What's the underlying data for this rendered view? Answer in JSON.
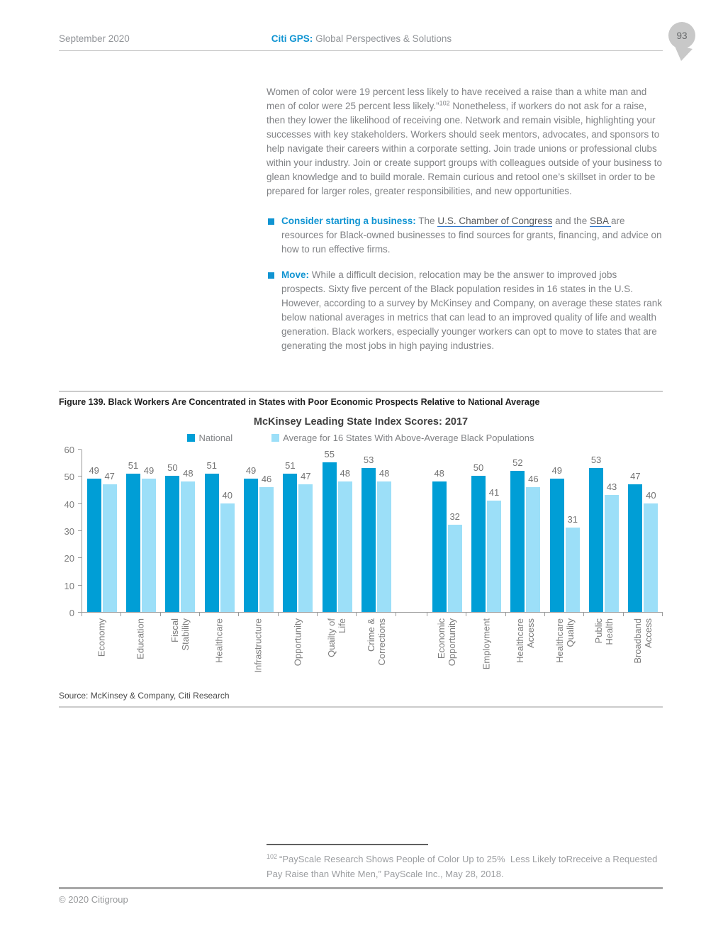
{
  "header": {
    "date": "September 2020",
    "brand": "Citi GPS:",
    "tagline": "Global Perspectives & Solutions",
    "page_number": "93"
  },
  "body": {
    "para_a": "Women of color were 19 percent less likely to have received a raise than a white man and men of color were 25 percent less likely.”",
    "para_sup": "102",
    "para_b": " Nonetheless, if workers do not ask for a raise, then they lower the likelihood of receiving one. Network and remain visible, highlighting your successes with key stakeholders. Workers should seek mentors, advocates, and sponsors to help navigate their careers within a corporate setting. Join trade unions or professional clubs within your industry. Join or create support groups with colleagues outside of your business to glean knowledge and to build morale. Remain curious and retool one’s skillset in order to be prepared for larger roles, greater responsibilities, and new opportunities.",
    "bullets": [
      {
        "lead": "Consider starting a business:",
        "t1": " The ",
        "link1": "U.S. Chamber of Congress",
        "t2": " and the ",
        "link2": "SBA ",
        "t3": "are resources for Black-owned businesses to find sources for grants, financing, and advice on how to run effective firms."
      },
      {
        "lead": "Move:",
        "t1": " While a difficult decision, relocation may be the answer to improved jobs prospects. Sixty five percent of the Black population resides in 16 states in the U.S. However, according to a survey by McKinsey and Company, on average these states rank below national averages in metrics that can lead to an improved quality of life and wealth generation. Black workers, especially younger workers can opt to move to states that are generating the most jobs in high paying industries."
      }
    ]
  },
  "figure": {
    "caption": "Figure 139. Black Workers Are Concentrated in States with Poor Economic Prospects Relative to National Average",
    "source": "Source: McKinsey & Company, Citi Research"
  },
  "chart_data": {
    "type": "bar",
    "title": "McKinsey Leading State Index Scores: 2017",
    "legend_position": "top",
    "grid": false,
    "ylim": [
      0,
      60
    ],
    "yticks": [
      0,
      10,
      20,
      30,
      40,
      50,
      60
    ],
    "series_names": [
      "National",
      "Average for 16 States With Above-Average Black Populations"
    ],
    "clusters": [
      {
        "categories": [
          "Economy",
          "Education",
          "Fiscal\nStability",
          "Healthcare",
          "Infrastructure",
          "Opportunity",
          "Quailty of\nLife",
          "Crime &\nCorrections"
        ],
        "series": [
          {
            "name": "National",
            "values": [
              49,
              51,
              50,
              51,
              49,
              51,
              55,
              53
            ]
          },
          {
            "name": "Average for 16 States With Above-Average Black Populations",
            "values": [
              47,
              49,
              48,
              40,
              46,
              47,
              48,
              48
            ]
          }
        ]
      },
      {
        "categories": [
          "Economic\nOpportunity",
          "Employment",
          "Healthcare\nAccess",
          "Healthcare\nQuality",
          "Public\nHealth",
          "Broadband\nAccess"
        ],
        "series": [
          {
            "name": "National",
            "values": [
              48,
              50,
              52,
              49,
              53,
              47
            ]
          },
          {
            "name": "Average for 16 States With Above-Average Black Populations",
            "values": [
              32,
              41,
              46,
              31,
              43,
              40
            ]
          }
        ]
      }
    ]
  },
  "footnote": {
    "marker": "102",
    "text": "“PayScale Research Shows People of Color Up to 25%  Less Likely toRreceive a Requested Pay Raise than White Men,” PayScale Inc., May 28, 2018."
  },
  "footer": {
    "copyright": "© 2020 Citigroup"
  },
  "colors": {
    "accent": "#1094d2",
    "bar_national": "#009ed6",
    "bar_states16": "#9cdff8",
    "link_underline": "#2e74c9",
    "page_badge": "#c8c8c8"
  }
}
